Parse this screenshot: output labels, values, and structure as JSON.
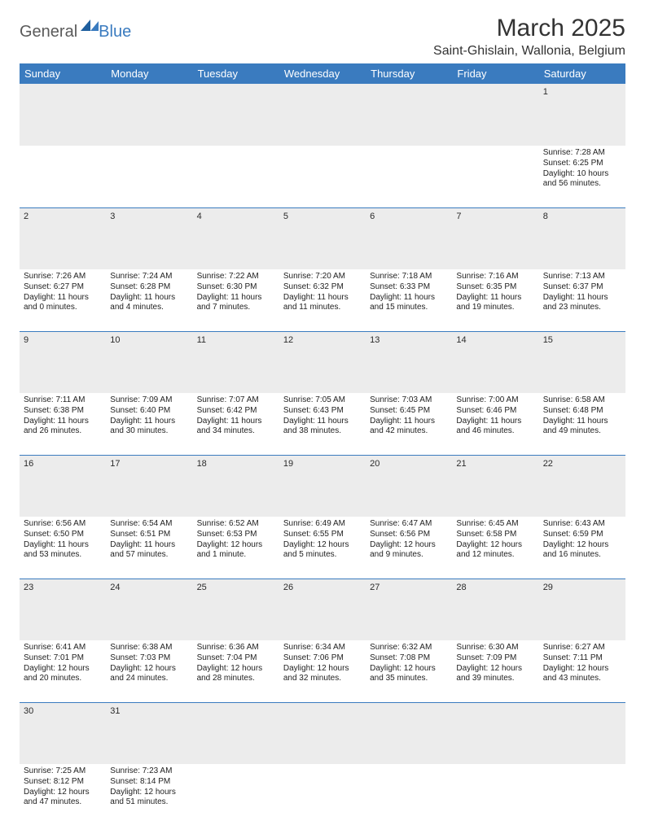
{
  "brand": {
    "part1": "General",
    "part2": "Blue"
  },
  "title": "March 2025",
  "location": "Saint-Ghislain, Wallonia, Belgium",
  "colors": {
    "header_bg": "#3a7bbf",
    "header_text": "#ffffff",
    "daynum_bg": "#ececec",
    "rule": "#3a7bbf",
    "text": "#222222"
  },
  "weekdays": [
    "Sunday",
    "Monday",
    "Tuesday",
    "Wednesday",
    "Thursday",
    "Friday",
    "Saturday"
  ],
  "weeks": [
    [
      null,
      null,
      null,
      null,
      null,
      null,
      {
        "n": "1",
        "sr": "Sunrise: 7:28 AM",
        "ss": "Sunset: 6:25 PM",
        "dl": "Daylight: 10 hours and 56 minutes."
      }
    ],
    [
      {
        "n": "2",
        "sr": "Sunrise: 7:26 AM",
        "ss": "Sunset: 6:27 PM",
        "dl": "Daylight: 11 hours and 0 minutes."
      },
      {
        "n": "3",
        "sr": "Sunrise: 7:24 AM",
        "ss": "Sunset: 6:28 PM",
        "dl": "Daylight: 11 hours and 4 minutes."
      },
      {
        "n": "4",
        "sr": "Sunrise: 7:22 AM",
        "ss": "Sunset: 6:30 PM",
        "dl": "Daylight: 11 hours and 7 minutes."
      },
      {
        "n": "5",
        "sr": "Sunrise: 7:20 AM",
        "ss": "Sunset: 6:32 PM",
        "dl": "Daylight: 11 hours and 11 minutes."
      },
      {
        "n": "6",
        "sr": "Sunrise: 7:18 AM",
        "ss": "Sunset: 6:33 PM",
        "dl": "Daylight: 11 hours and 15 minutes."
      },
      {
        "n": "7",
        "sr": "Sunrise: 7:16 AM",
        "ss": "Sunset: 6:35 PM",
        "dl": "Daylight: 11 hours and 19 minutes."
      },
      {
        "n": "8",
        "sr": "Sunrise: 7:13 AM",
        "ss": "Sunset: 6:37 PM",
        "dl": "Daylight: 11 hours and 23 minutes."
      }
    ],
    [
      {
        "n": "9",
        "sr": "Sunrise: 7:11 AM",
        "ss": "Sunset: 6:38 PM",
        "dl": "Daylight: 11 hours and 26 minutes."
      },
      {
        "n": "10",
        "sr": "Sunrise: 7:09 AM",
        "ss": "Sunset: 6:40 PM",
        "dl": "Daylight: 11 hours and 30 minutes."
      },
      {
        "n": "11",
        "sr": "Sunrise: 7:07 AM",
        "ss": "Sunset: 6:42 PM",
        "dl": "Daylight: 11 hours and 34 minutes."
      },
      {
        "n": "12",
        "sr": "Sunrise: 7:05 AM",
        "ss": "Sunset: 6:43 PM",
        "dl": "Daylight: 11 hours and 38 minutes."
      },
      {
        "n": "13",
        "sr": "Sunrise: 7:03 AM",
        "ss": "Sunset: 6:45 PM",
        "dl": "Daylight: 11 hours and 42 minutes."
      },
      {
        "n": "14",
        "sr": "Sunrise: 7:00 AM",
        "ss": "Sunset: 6:46 PM",
        "dl": "Daylight: 11 hours and 46 minutes."
      },
      {
        "n": "15",
        "sr": "Sunrise: 6:58 AM",
        "ss": "Sunset: 6:48 PM",
        "dl": "Daylight: 11 hours and 49 minutes."
      }
    ],
    [
      {
        "n": "16",
        "sr": "Sunrise: 6:56 AM",
        "ss": "Sunset: 6:50 PM",
        "dl": "Daylight: 11 hours and 53 minutes."
      },
      {
        "n": "17",
        "sr": "Sunrise: 6:54 AM",
        "ss": "Sunset: 6:51 PM",
        "dl": "Daylight: 11 hours and 57 minutes."
      },
      {
        "n": "18",
        "sr": "Sunrise: 6:52 AM",
        "ss": "Sunset: 6:53 PM",
        "dl": "Daylight: 12 hours and 1 minute."
      },
      {
        "n": "19",
        "sr": "Sunrise: 6:49 AM",
        "ss": "Sunset: 6:55 PM",
        "dl": "Daylight: 12 hours and 5 minutes."
      },
      {
        "n": "20",
        "sr": "Sunrise: 6:47 AM",
        "ss": "Sunset: 6:56 PM",
        "dl": "Daylight: 12 hours and 9 minutes."
      },
      {
        "n": "21",
        "sr": "Sunrise: 6:45 AM",
        "ss": "Sunset: 6:58 PM",
        "dl": "Daylight: 12 hours and 12 minutes."
      },
      {
        "n": "22",
        "sr": "Sunrise: 6:43 AM",
        "ss": "Sunset: 6:59 PM",
        "dl": "Daylight: 12 hours and 16 minutes."
      }
    ],
    [
      {
        "n": "23",
        "sr": "Sunrise: 6:41 AM",
        "ss": "Sunset: 7:01 PM",
        "dl": "Daylight: 12 hours and 20 minutes."
      },
      {
        "n": "24",
        "sr": "Sunrise: 6:38 AM",
        "ss": "Sunset: 7:03 PM",
        "dl": "Daylight: 12 hours and 24 minutes."
      },
      {
        "n": "25",
        "sr": "Sunrise: 6:36 AM",
        "ss": "Sunset: 7:04 PM",
        "dl": "Daylight: 12 hours and 28 minutes."
      },
      {
        "n": "26",
        "sr": "Sunrise: 6:34 AM",
        "ss": "Sunset: 7:06 PM",
        "dl": "Daylight: 12 hours and 32 minutes."
      },
      {
        "n": "27",
        "sr": "Sunrise: 6:32 AM",
        "ss": "Sunset: 7:08 PM",
        "dl": "Daylight: 12 hours and 35 minutes."
      },
      {
        "n": "28",
        "sr": "Sunrise: 6:30 AM",
        "ss": "Sunset: 7:09 PM",
        "dl": "Daylight: 12 hours and 39 minutes."
      },
      {
        "n": "29",
        "sr": "Sunrise: 6:27 AM",
        "ss": "Sunset: 7:11 PM",
        "dl": "Daylight: 12 hours and 43 minutes."
      }
    ],
    [
      {
        "n": "30",
        "sr": "Sunrise: 7:25 AM",
        "ss": "Sunset: 8:12 PM",
        "dl": "Daylight: 12 hours and 47 minutes."
      },
      {
        "n": "31",
        "sr": "Sunrise: 7:23 AM",
        "ss": "Sunset: 8:14 PM",
        "dl": "Daylight: 12 hours and 51 minutes."
      },
      null,
      null,
      null,
      null,
      null
    ]
  ]
}
